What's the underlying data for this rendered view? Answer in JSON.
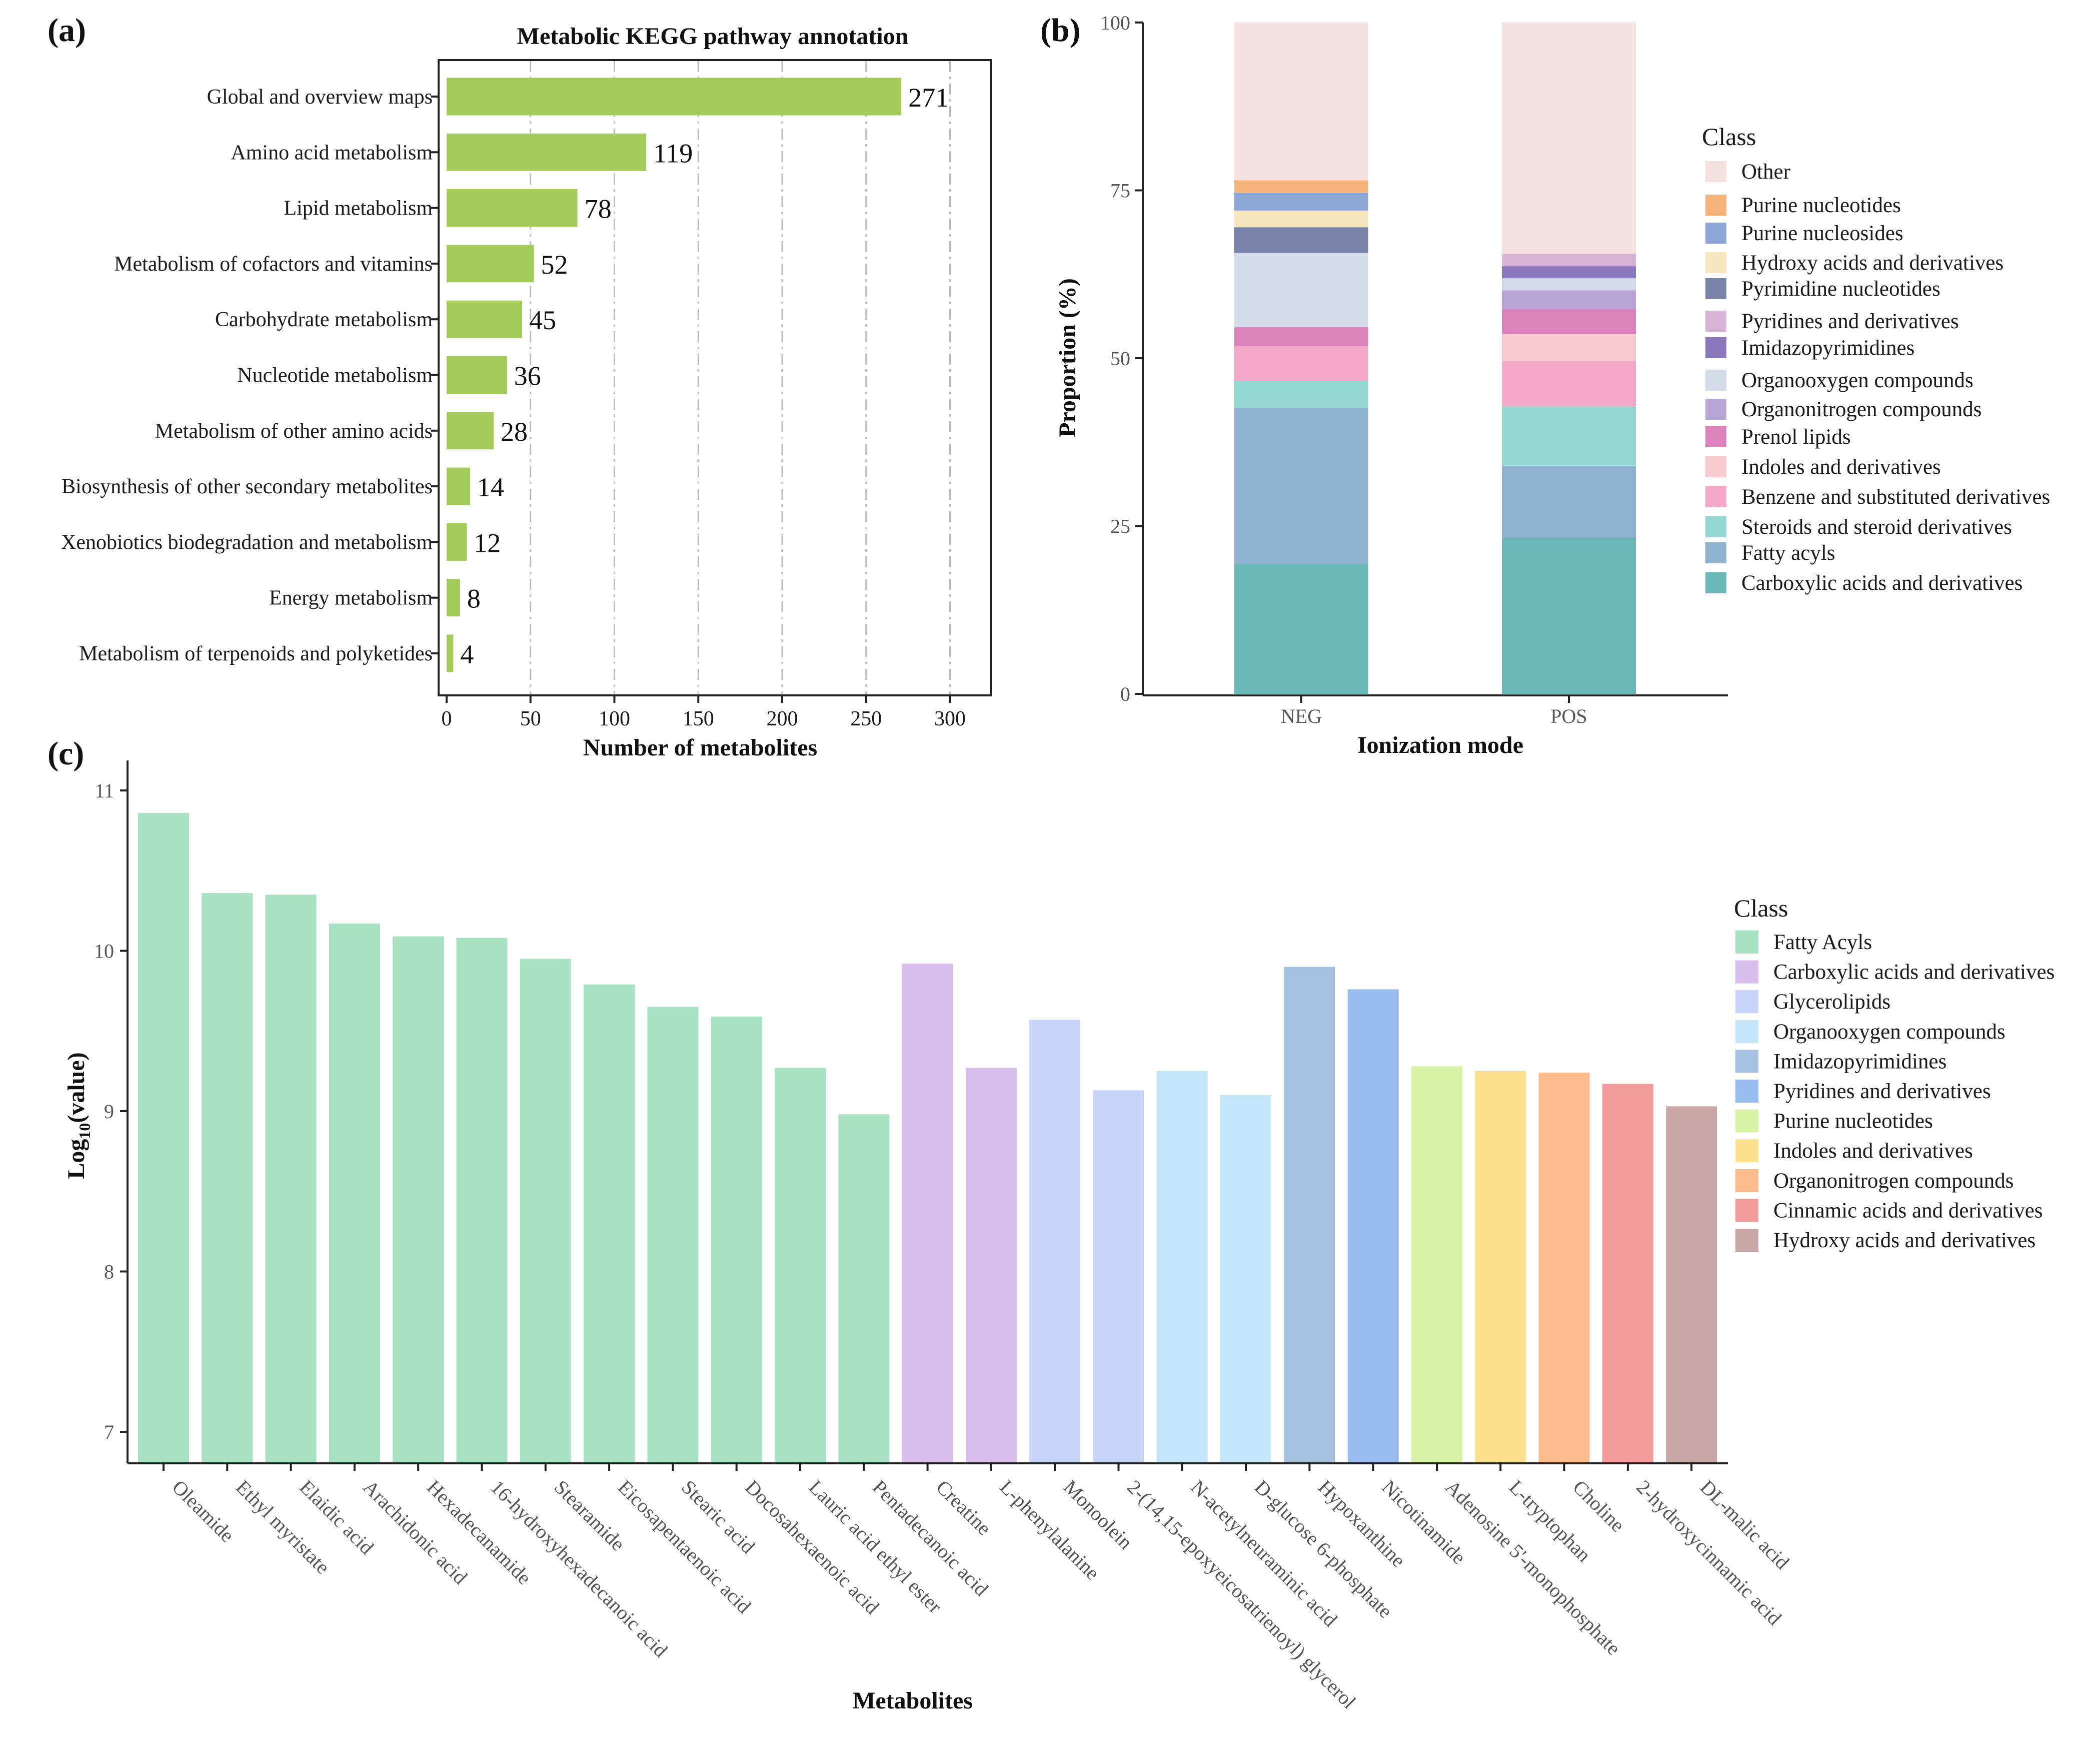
{
  "panels": {
    "a": {
      "label": "(a)"
    },
    "b": {
      "label": "(b)"
    },
    "c": {
      "label": "(c)"
    }
  },
  "colors": {
    "bar_a": "#a2cb5b",
    "axis": "#222222",
    "grid": "#bbbbbb"
  },
  "chart_data": [
    {
      "id": "a",
      "type": "bar",
      "orientation": "horizontal",
      "title": "Metabolic KEGG pathway annotation",
      "xlabel": "Number of metabolites",
      "ylabel": "",
      "xlim": [
        0,
        300
      ],
      "xticks": [
        "0",
        "50",
        "100",
        "150",
        "200",
        "250",
        "300"
      ],
      "grid": "vertical dashed",
      "categories": [
        "Global and overview maps",
        "Amino acid metabolism",
        "Lipid metabolism",
        "Metabolism of cofactors and vitamins",
        "Carbohydrate metabolism",
        "Nucleotide metabolism",
        "Metabolism of other amino acids",
        "Biosynthesis of other secondary metabolites",
        "Xenobiotics biodegradation and metabolism",
        "Energy metabolism",
        "Metabolism of terpenoids and polyketides"
      ],
      "values": [
        271,
        119,
        78,
        52,
        45,
        36,
        28,
        14,
        12,
        8,
        4
      ],
      "data_labels": [
        "271",
        "119",
        "78",
        "52",
        "45",
        "36",
        "28",
        "14",
        "12",
        "8",
        "4"
      ]
    },
    {
      "id": "b",
      "type": "bar",
      "stacked": true,
      "title": "",
      "xlabel": "Ionization mode",
      "ylabel": "Proportion (%)",
      "ylim": [
        0,
        100
      ],
      "yticks": [
        "0",
        "25",
        "50",
        "75",
        "100"
      ],
      "categories": [
        "NEG",
        "POS"
      ],
      "legend_title": "Class",
      "legend_position": "right",
      "legend_order": [
        "Other",
        "Purine nucleotides",
        "Purine nucleosides",
        "Hydroxy acids and derivatives",
        "Pyrimidine nucleotides",
        "Pyridines and derivatives",
        "Imidazopyrimidines",
        "Organooxygen compounds",
        "Organonitrogen compounds",
        "Prenol lipids",
        "Indoles and derivatives",
        "Benzene and substituted derivatives",
        "Steroids and steroid derivatives",
        "Fatty acyls",
        "Carboxylic acids and derivatives"
      ],
      "series": [
        {
          "name": "Carboxylic acids and derivatives",
          "color": "#6ab8b7",
          "values": [
            19.3,
            23.2
          ]
        },
        {
          "name": "Fatty acyls",
          "color": "#90b2d1",
          "values": [
            23.3,
            10.8
          ]
        },
        {
          "name": "Steroids and steroid derivatives",
          "color": "#95d8d3",
          "values": [
            4.0,
            8.8
          ]
        },
        {
          "name": "Benzene and substituted derivatives",
          "color": "#f4a9c9",
          "values": [
            5.2,
            6.8
          ]
        },
        {
          "name": "Indoles and derivatives",
          "color": "#f8cbd1",
          "values": [
            0.0,
            4.0
          ]
        },
        {
          "name": "Prenol lipids",
          "color": "#dc82bd",
          "values": [
            2.9,
            3.7
          ]
        },
        {
          "name": "Organonitrogen compounds",
          "color": "#b9a6d6",
          "values": [
            0.0,
            2.8
          ]
        },
        {
          "name": "Organooxygen compounds",
          "color": "#d4dcea",
          "values": [
            11.0,
            1.8
          ]
        },
        {
          "name": "Imidazopyrimidines",
          "color": "#8c79bd",
          "values": [
            0.0,
            1.8
          ]
        },
        {
          "name": "Pyridines and derivatives",
          "color": "#d7b4d8",
          "values": [
            0.0,
            1.8
          ]
        },
        {
          "name": "Pyrimidine nucleotides",
          "color": "#7a83a9",
          "values": [
            3.8,
            0.0
          ]
        },
        {
          "name": "Hydroxy acids and derivatives",
          "color": "#f8e6be",
          "values": [
            2.5,
            0.0
          ]
        },
        {
          "name": "Purine nucleosides",
          "color": "#8fa7d6",
          "values": [
            2.6,
            0.0
          ]
        },
        {
          "name": "Purine nucleotides",
          "color": "#f6b47a",
          "values": [
            1.9,
            0.0
          ]
        },
        {
          "name": "Other",
          "color": "#f5e1df",
          "values": [
            23.5,
            34.5
          ]
        }
      ]
    },
    {
      "id": "c",
      "type": "bar",
      "title": "",
      "xlabel": "Metabolites",
      "ylabel": "Log10(value)",
      "ylabel_main": "Log",
      "ylabel_sub": "10",
      "ylabel_tail": "(value)",
      "ylim": [
        6.8,
        11.2
      ],
      "yticks": [
        "7",
        "8",
        "9",
        "10",
        "11"
      ],
      "legend_title": "Class",
      "legend_position": "right",
      "classes": [
        {
          "name": "Fatty Acyls",
          "color": "#a8e2c2"
        },
        {
          "name": "Carboxylic acids and derivatives",
          "color": "#d9bdec"
        },
        {
          "name": "Glycerolipids",
          "color": "#c7d3f9"
        },
        {
          "name": "Organooxygen compounds",
          "color": "#c4e5fa"
        },
        {
          "name": "Imidazopyrimidines",
          "color": "#a7c2e1"
        },
        {
          "name": "Pyridines and derivatives",
          "color": "#98bdee"
        },
        {
          "name": "Purine nucleotides",
          "color": "#d8f2a8"
        },
        {
          "name": "Indoles and derivatives",
          "color": "#fde08e"
        },
        {
          "name": "Organonitrogen compounds",
          "color": "#fcbb8c"
        },
        {
          "name": "Cinnamic acids and derivatives",
          "color": "#f39c9c"
        },
        {
          "name": "Hydroxy acids and derivatives",
          "color": "#c9a7a7"
        }
      ],
      "categories": [
        "Oleamide",
        "Ethyl myristate",
        "Elaidic acid",
        "Arachidonic acid",
        "Hexadecanamide",
        "16-hydroxyhexadecanoic acid",
        "Stearamide",
        "Eicosapentaenoic acid",
        "Stearic acid",
        "Docosahexaenoic acid",
        "Lauric acid ethyl ester",
        "Pentadecanoic acid",
        "Creatine",
        "L-phenylalanine",
        "Monoolein",
        "2-(14,15-epoxyeicosatrienoyl) glycerol",
        "N-acetylneuraminic acid",
        "D-glucose 6-phosphate",
        "Hypoxanthine",
        "Nicotinamide",
        "Adenosine 5'-monophosphate",
        "L-tryptophan",
        "Choline",
        "2-hydroxycinnamic acid",
        "DL-malic acid"
      ],
      "values": [
        10.86,
        10.36,
        10.35,
        10.17,
        10.09,
        10.08,
        9.95,
        9.79,
        9.65,
        9.59,
        9.27,
        8.98,
        9.92,
        9.27,
        9.57,
        9.13,
        9.25,
        9.1,
        9.9,
        9.76,
        9.28,
        9.25,
        9.24,
        9.17,
        9.03
      ],
      "class_index": [
        0,
        0,
        0,
        0,
        0,
        0,
        0,
        0,
        0,
        0,
        0,
        0,
        1,
        1,
        2,
        2,
        3,
        3,
        4,
        5,
        6,
        7,
        8,
        9,
        10
      ]
    }
  ]
}
